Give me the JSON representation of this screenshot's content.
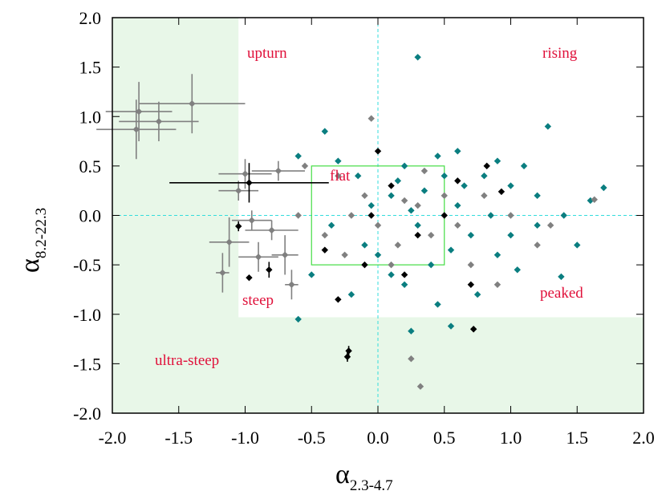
{
  "chart_data": {
    "type": "scatter",
    "x_label": "α",
    "x_label_sub": "2.3-4.7",
    "y_label": "α",
    "y_label_sub": "8.2-22.3",
    "xlim": [
      -2,
      2
    ],
    "ylim": [
      -2,
      2
    ],
    "xticks": [
      {
        "value": -2,
        "label": "-2.0"
      },
      -1.5,
      {
        "value": -1,
        "label": "-1.0"
      },
      -0.5,
      {
        "value": 0,
        "label": "0.0"
      },
      0.5,
      {
        "value": 1,
        "label": "1.0"
      },
      1.5,
      {
        "value": 2,
        "label": "2.0"
      }
    ],
    "yticks": [
      {
        "value": -2,
        "label": "-2.0"
      },
      -1.5,
      {
        "value": -1,
        "label": "-1.0"
      },
      -0.5,
      {
        "value": 0,
        "label": "0.0"
      },
      0.5,
      {
        "value": 1,
        "label": "1.0"
      },
      1.5,
      {
        "value": 2,
        "label": "2.0"
      }
    ],
    "shaded_region": {
      "x": -1.05,
      "y": -1.03,
      "color": "#e8f7e8"
    },
    "box": {
      "xlim": [
        -0.5,
        0.5
      ],
      "ylim": [
        -0.5,
        0.5
      ],
      "color": "#44dd44"
    },
    "zero_line_color": "#33dddd",
    "annotations": [
      "upturn",
      "rising",
      "flat",
      "steep",
      "peaked",
      "ultra-steep"
    ],
    "series": [
      {
        "color": "#808080",
        "x": [
          -1.8,
          -1.82,
          -1.65,
          -1.4,
          -1.0,
          -1.05,
          -1.12,
          -1.17,
          -0.9,
          -0.7,
          -0.65,
          -0.75,
          -0.95,
          -0.8
        ],
        "values": [
          1.05,
          0.87,
          0.95,
          1.13,
          0.42,
          0.25,
          -0.27,
          -0.58,
          -0.42,
          -0.4,
          -0.7,
          0.45,
          -0.05,
          -0.15
        ],
        "xerr": [
          0.25,
          0.3,
          0.3,
          0.4,
          0.2,
          0.15,
          0.15,
          0.05,
          0.15,
          0.1,
          0.05,
          0.2,
          0.15,
          0.2
        ],
        "yerr": [
          0.3,
          0.3,
          0.2,
          0.3,
          0.15,
          0.1,
          0.25,
          0.2,
          0.15,
          0.2,
          0.15,
          0.1,
          0.1,
          0.1
        ]
      },
      {
        "color": "#0a7e80",
        "x": [
          0.3,
          1.28,
          -0.4,
          0.2,
          0.5,
          0.8,
          1.0,
          1.2,
          1.7,
          1.6,
          1.4,
          1.2,
          1.5,
          1.38,
          1.05,
          0.9,
          0.7,
          0.55,
          0.25,
          -0.6,
          -0.6,
          -0.3,
          0.1,
          0.3,
          -0.1,
          0.4,
          0.6,
          0.2,
          -0.2,
          0.45,
          0.75,
          -0.5,
          0.0,
          0.15,
          0.35,
          -0.05,
          0.65,
          0.85,
          1.0,
          0.1,
          -0.35,
          0.25,
          0.55,
          -0.15,
          0.45,
          0.6,
          0.9,
          1.1
        ],
        "values": [
          1.6,
          0.9,
          0.85,
          0.5,
          0.4,
          0.4,
          0.3,
          0.2,
          0.28,
          0.15,
          0.0,
          -0.1,
          -0.3,
          -0.62,
          -0.55,
          -0.4,
          -0.2,
          -1.12,
          -1.17,
          -1.05,
          0.6,
          0.55,
          0.2,
          -0.1,
          -0.3,
          -0.5,
          0.1,
          -0.7,
          -0.8,
          -0.9,
          -0.8,
          -0.6,
          -0.4,
          0.35,
          0.25,
          0.1,
          0.3,
          0.0,
          -0.2,
          -0.6,
          -0.1,
          0.05,
          -0.35,
          0.4,
          0.6,
          0.65,
          0.55,
          0.5
        ]
      },
      {
        "color": "#808080",
        "x": [
          -0.05,
          -0.55,
          -0.3,
          -0.1,
          0.2,
          0.4,
          0.6,
          0.8,
          1.0,
          1.2,
          1.63,
          0.25,
          0.32,
          -0.4,
          0.0,
          0.15,
          -0.2,
          0.35,
          0.7,
          0.5,
          -0.6,
          0.1,
          0.3,
          -0.25,
          0.9,
          1.3
        ],
        "values": [
          0.98,
          0.5,
          0.4,
          0.2,
          0.15,
          -0.2,
          -0.1,
          0.2,
          0.0,
          -0.3,
          0.16,
          -1.45,
          -1.73,
          -0.2,
          -0.1,
          -0.3,
          0.0,
          0.45,
          -0.5,
          0.2,
          0.0,
          -0.5,
          0.1,
          -0.4,
          -0.7,
          -0.1
        ]
      },
      {
        "color": "#000000",
        "x": [
          -0.97,
          -0.22,
          -0.23,
          -0.82,
          -0.97,
          -1.05,
          0.72,
          0.82,
          0.93,
          0.7,
          0.0,
          -0.3,
          0.1,
          0.3,
          -0.1,
          0.5,
          0.2,
          -0.4,
          0.6,
          -0.05
        ],
        "values": [
          0.33,
          -1.37,
          -1.43,
          -0.55,
          -0.63,
          -0.11,
          -1.15,
          0.5,
          0.24,
          -0.7,
          0.65,
          -0.85,
          0.3,
          -0.2,
          -0.5,
          0.0,
          -0.6,
          -0.35,
          0.35,
          0.0
        ],
        "xerr": [
          0.6,
          0.02,
          0.02,
          0.02,
          null,
          0.02,
          null,
          null,
          null,
          null,
          null,
          null,
          null,
          null,
          null,
          null,
          null,
          null,
          null,
          null
        ],
        "yerr": [
          0.2,
          0.05,
          0.05,
          0.08,
          null,
          0.05,
          null,
          null,
          null,
          null,
          null,
          null,
          null,
          null,
          null,
          null,
          null,
          null,
          null,
          null
        ]
      }
    ]
  }
}
